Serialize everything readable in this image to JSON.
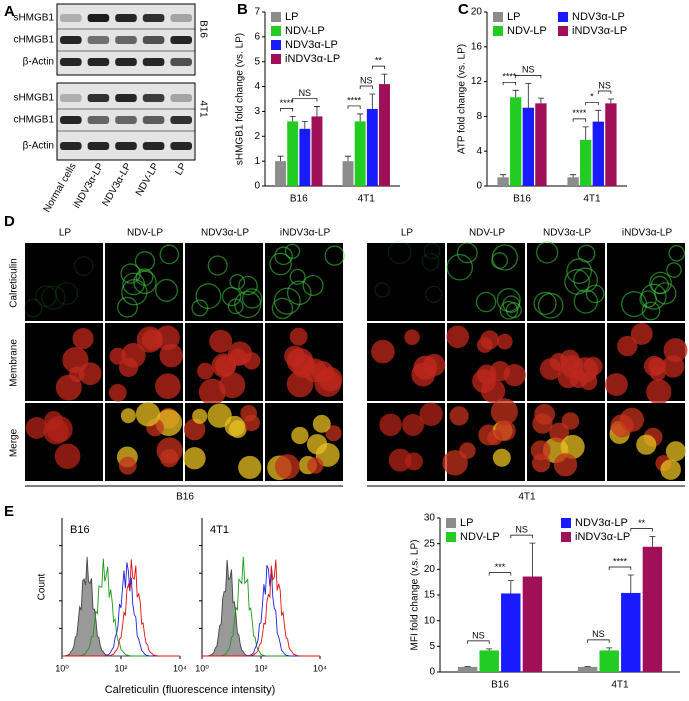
{
  "panels": {
    "letters": [
      "A",
      "B",
      "C",
      "D",
      "E"
    ]
  },
  "blot": {
    "rows": [
      "sHMGB1",
      "cHMGB1",
      "β-Actin",
      "sHMGB1",
      "cHMGB1",
      "β-Actin"
    ],
    "cells": [
      "B16",
      "4T1"
    ],
    "lanes": [
      "Normal cells",
      "iNDV3α-LP",
      "NDV3α-LP",
      "NDV-LP",
      "LP"
    ]
  },
  "microscopy": {
    "rows": [
      "Calreticulin",
      "Membrane",
      "Merge"
    ],
    "groups": [
      {
        "label": "B16",
        "columns": [
          "LP",
          "NDV-LP",
          "NDV3α-LP",
          "iNDV3α-LP"
        ]
      },
      {
        "label": "4T1",
        "columns": [
          "LP",
          "NDV-LP",
          "NDV3α-LP",
          "iNDV3α-LP"
        ]
      }
    ]
  },
  "chart_data": [
    {
      "type": "bar",
      "ylabel": "sHMGB1 fold change (vs. LP)",
      "categories": [
        "B16",
        "4T1"
      ],
      "ylim": [
        0,
        7
      ],
      "yticks": [
        0,
        1,
        2,
        3,
        4,
        5,
        6,
        7
      ],
      "legend_columns": 1,
      "series": [
        {
          "name": "LP",
          "color": "#8c8c8c",
          "values": [
            1.0,
            1.0
          ],
          "errors": [
            0.2,
            0.2
          ]
        },
        {
          "name": "NDV-LP",
          "color": "#22cc22",
          "values": [
            2.6,
            2.6
          ],
          "errors": [
            0.2,
            0.3
          ]
        },
        {
          "name": "NDV3α-LP",
          "color": "#1a1aff",
          "values": [
            2.3,
            3.1
          ],
          "errors": [
            0.3,
            0.6
          ]
        },
        {
          "name": "iNDV3α-LP",
          "color": "#a01058",
          "values": [
            2.8,
            4.1
          ],
          "errors": [
            0.4,
            0.4
          ]
        }
      ],
      "annotations": [
        [
          "****",
          "NS"
        ],
        [
          "****",
          "NS",
          "**"
        ]
      ]
    },
    {
      "type": "bar",
      "ylabel": "ATP fold change (vs. LP)",
      "categories": [
        "B16",
        "4T1"
      ],
      "ylim": [
        0,
        20
      ],
      "yticks": [
        0,
        4,
        8,
        12,
        16,
        20
      ],
      "legend_columns": 2,
      "series": [
        {
          "name": "LP",
          "color": "#8c8c8c",
          "values": [
            1.0,
            1.0
          ],
          "errors": [
            0.3,
            0.3
          ]
        },
        {
          "name": "NDV-LP",
          "color": "#22cc22",
          "values": [
            10.2,
            5.3
          ],
          "errors": [
            0.8,
            1.5
          ]
        },
        {
          "name": "NDV3α-LP",
          "color": "#1a1aff",
          "values": [
            9.0,
            7.4
          ],
          "errors": [
            2.8,
            1.3
          ]
        },
        {
          "name": "iNDV3α-LP",
          "color": "#a01058",
          "values": [
            9.5,
            9.5
          ],
          "errors": [
            0.6,
            0.5
          ]
        }
      ],
      "annotations": [
        [
          "****",
          "NS"
        ],
        [
          "****",
          "*",
          "NS"
        ]
      ]
    },
    {
      "type": "bar",
      "ylabel": "MFI fold change (v.s. LP)",
      "categories": [
        "B16",
        "4T1"
      ],
      "ylim": [
        0,
        30
      ],
      "yticks": [
        0,
        5,
        10,
        15,
        20,
        25,
        30
      ],
      "legend_columns": 2,
      "series": [
        {
          "name": "LP",
          "color": "#8c8c8c",
          "values": [
            1.0,
            1.0
          ],
          "errors": [
            0.1,
            0.1
          ]
        },
        {
          "name": "NDV-LP",
          "color": "#22cc22",
          "values": [
            4.2,
            4.2
          ],
          "errors": [
            0.3,
            0.5
          ]
        },
        {
          "name": "NDV3α-LP",
          "color": "#1a1aff",
          "values": [
            15.3,
            15.4
          ],
          "errors": [
            2.5,
            3.5
          ]
        },
        {
          "name": "iNDV3α-LP",
          "color": "#a01058",
          "values": [
            18.6,
            24.4
          ],
          "errors": [
            6.5,
            2.0
          ]
        }
      ],
      "annotations": [
        [
          "NS",
          "***",
          "NS"
        ],
        [
          "NS",
          "****",
          "**"
        ]
      ]
    },
    {
      "type": "density",
      "title": "B16",
      "ylabel": "Count",
      "xlabel": "Calreticulin (fluorescence intensity)",
      "log_x": true,
      "xlim": [
        1,
        10000
      ],
      "xticks": [
        {
          "value": 1,
          "label": "10⁰"
        },
        {
          "value": 100,
          "label": "10²"
        },
        {
          "value": 10000,
          "label": "10⁴"
        }
      ]
    },
    {
      "type": "density",
      "title": "4T1",
      "log_x": true,
      "xlim": [
        1,
        10000
      ],
      "xticks": [
        {
          "value": 1,
          "label": "10⁰"
        },
        {
          "value": 100,
          "label": "10²"
        },
        {
          "value": 10000,
          "label": "10⁴"
        }
      ]
    }
  ]
}
